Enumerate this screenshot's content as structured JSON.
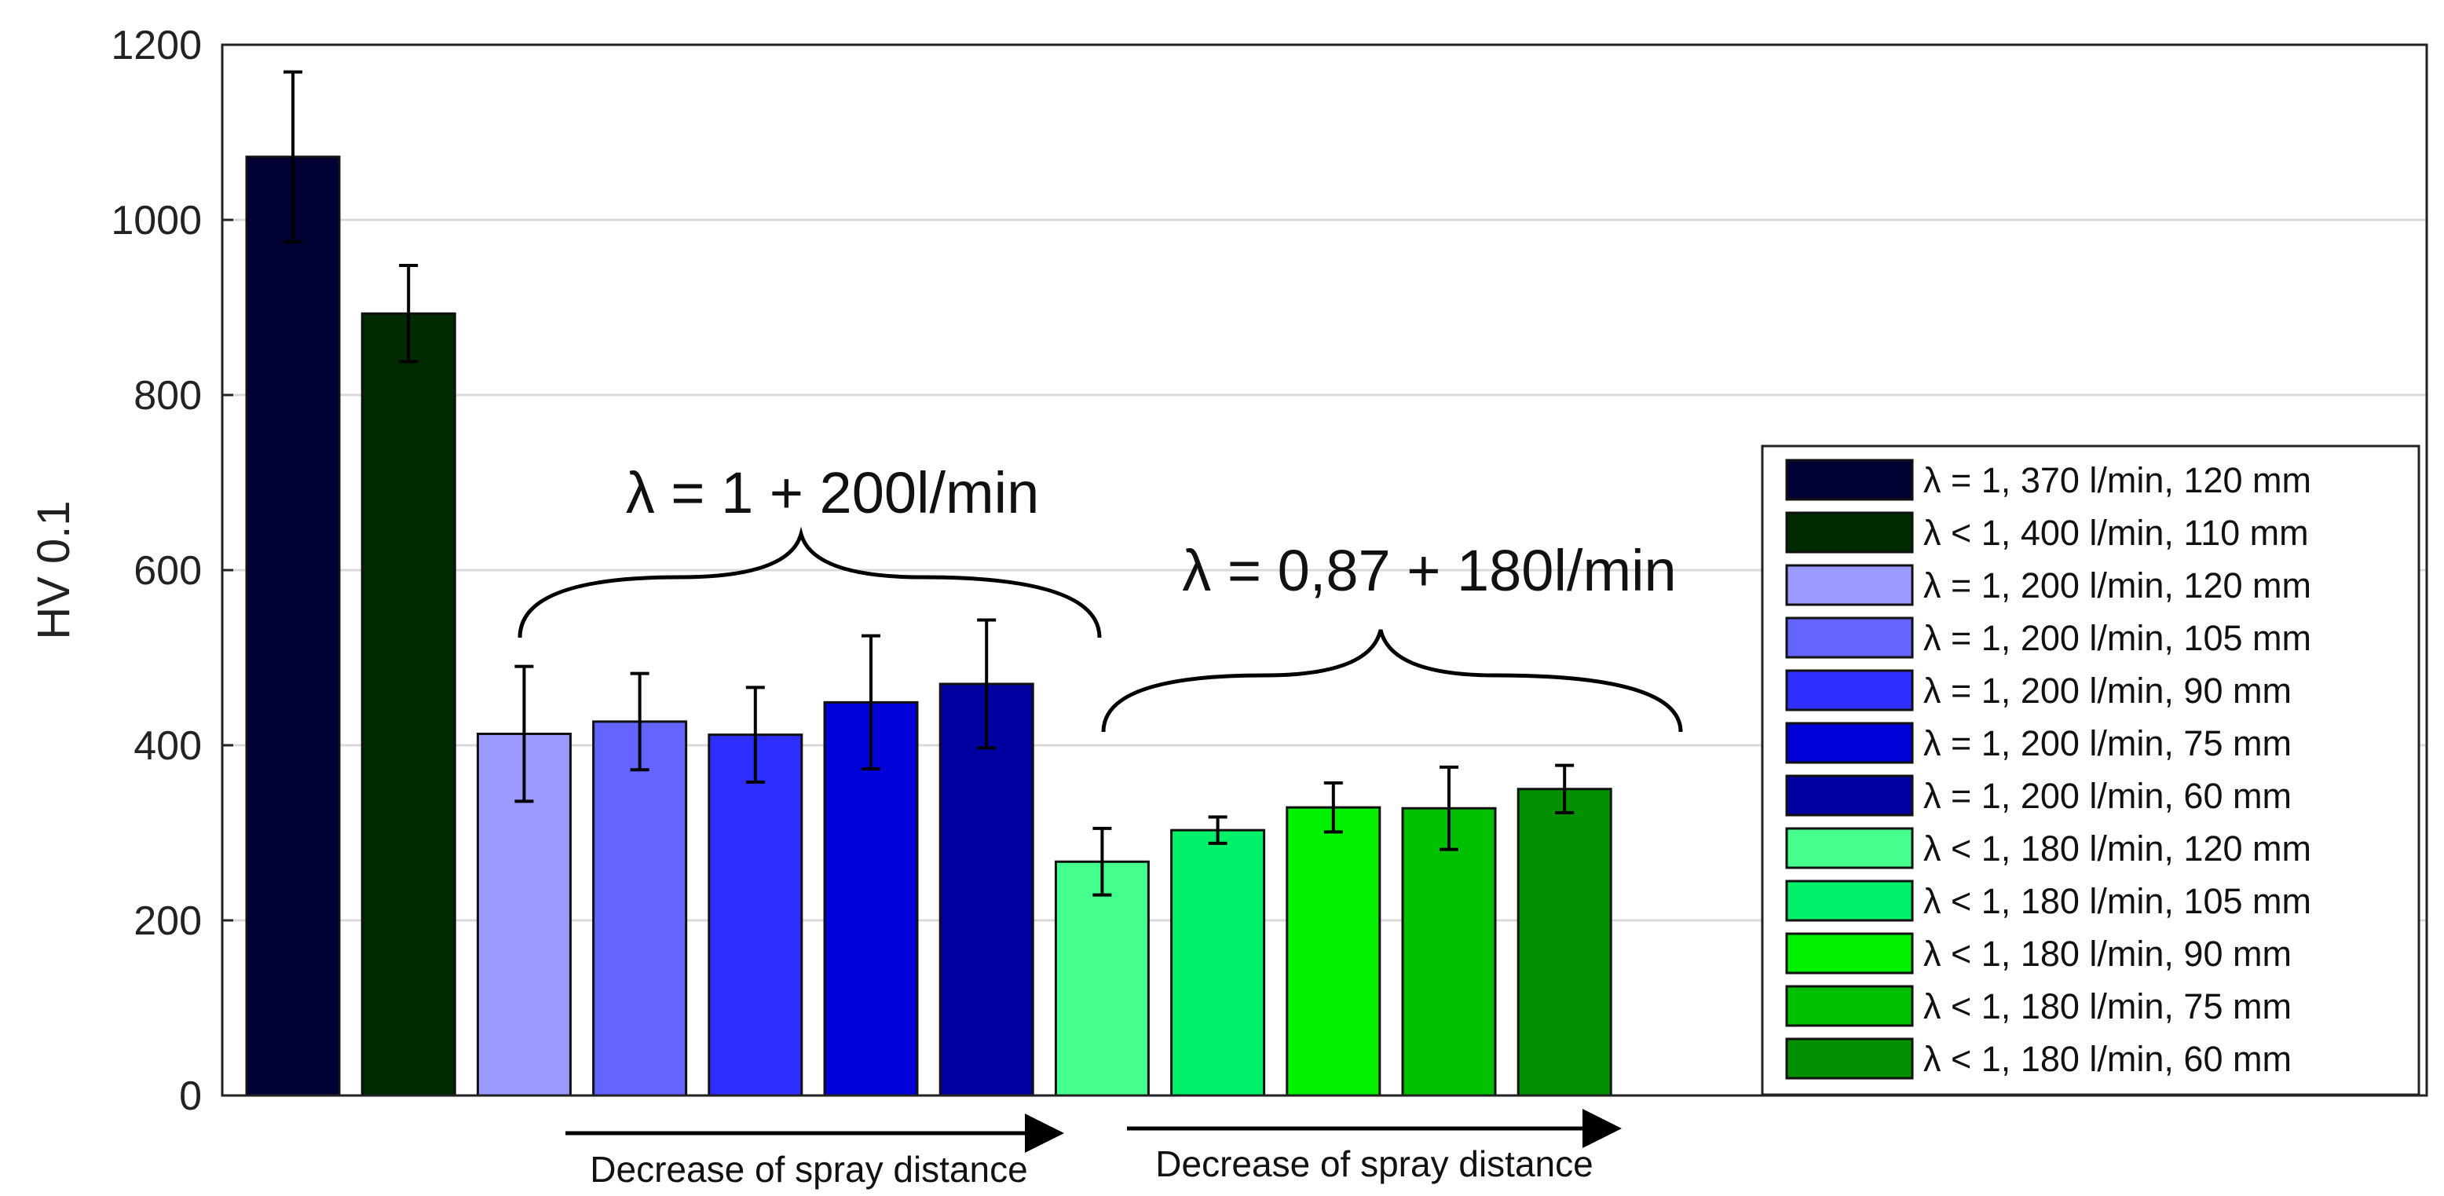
{
  "chart_data": {
    "type": "bar",
    "title": "",
    "xlabel": "",
    "ylabel": "HV 0.1",
    "ylim": [
      0,
      1200
    ],
    "yticks": [
      0,
      200,
      400,
      600,
      800,
      1000,
      1200
    ],
    "grid": true,
    "legend_position": "right",
    "series": [
      {
        "name": "λ = 1, 370 l/min, 120 mm",
        "value": 1072,
        "error": 97,
        "color": "#000033"
      },
      {
        "name": "λ < 1, 400 l/min, 110 mm",
        "value": 893,
        "error": 55,
        "color": "#002b00"
      },
      {
        "name": "λ = 1, 200 l/min, 120 mm",
        "value": 413,
        "error": 77,
        "color": "#9b9bff"
      },
      {
        "name": "λ = 1, 200 l/min, 105 mm",
        "value": 427,
        "error": 55,
        "color": "#6464ff"
      },
      {
        "name": "λ = 1, 200 l/min, 90 mm",
        "value": 412,
        "error": 54,
        "color": "#2e2eff"
      },
      {
        "name": "λ = 1, 200 l/min, 75 mm",
        "value": 449,
        "error": 76,
        "color": "#0000d8"
      },
      {
        "name": "λ = 1, 200 l/min, 60 mm",
        "value": 470,
        "error": 73,
        "color": "#0000a0"
      },
      {
        "name": "λ < 1, 180 l/min, 120 mm",
        "value": 267,
        "error": 38,
        "color": "#44ff8e"
      },
      {
        "name": "λ < 1, 180 l/min, 105 mm",
        "value": 303,
        "error": 15,
        "color": "#00f06a"
      },
      {
        "name": "λ < 1, 180 l/min, 90 mm",
        "value": 329,
        "error": 28,
        "color": "#00f000"
      },
      {
        "name": "λ < 1, 180 l/min, 75 mm",
        "value": 328,
        "error": 47,
        "color": "#00c000"
      },
      {
        "name": "λ < 1, 180 l/min, 60 mm",
        "value": 350,
        "error": 27,
        "color": "#009000"
      }
    ],
    "annotations": {
      "group1_label": "λ = 1 + 200l/min",
      "group2_label": "λ = 0,87 + 180l/min",
      "arrow1_label": "Decrease of spray distance",
      "arrow2_label": "Decrease of spray distance"
    }
  }
}
